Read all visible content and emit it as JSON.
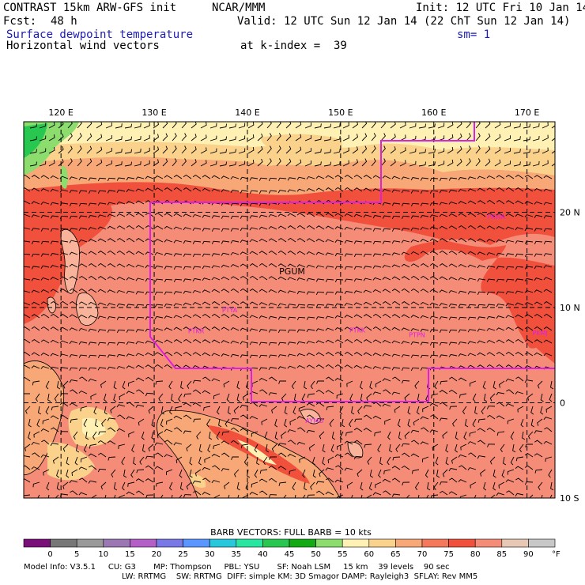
{
  "header": {
    "title": "CONTRAST 15km ARW-GFS init",
    "org": "NCAR/MMM",
    "init": "Init: 12 UTC Fri 10 Jan 14",
    "fcst_label": "Fcst:",
    "fcst_value": "48 h",
    "valid": "Valid: 12 UTC Sun 12 Jan 14 (22 ChT Sun 12 Jan 14)",
    "field": "Surface dewpoint temperature",
    "smoothing": "sm= 1",
    "vectors": "Horizontal wind vectors",
    "kindex": "at k-index =  39"
  },
  "axes": {
    "lon_labels": [
      "120 E",
      "130 E",
      "140 E",
      "150 E",
      "160 E",
      "170 E"
    ],
    "lon_values": [
      120,
      130,
      140,
      150,
      160,
      170
    ],
    "lat_labels": [
      "20 N",
      "10 N",
      "0",
      "10 S"
    ],
    "lat_values": [
      20,
      10,
      0,
      -10
    ],
    "lon_range": [
      116,
      173
    ],
    "lat_range": [
      -10,
      29.5
    ]
  },
  "stations": [
    {
      "name": "PGUM",
      "lon": 144.8,
      "lat": 13.5
    },
    {
      "name": "PTKR",
      "lon": 134.5,
      "lat": 7.3
    },
    {
      "name": "PTYA",
      "lon": 138.1,
      "lat": 9.5
    },
    {
      "name": "PTKK",
      "lon": 151.8,
      "lat": 7.4
    },
    {
      "name": "PTPN",
      "lon": 158.2,
      "lat": 6.9
    },
    {
      "name": "PKMJ",
      "lon": 171.4,
      "lat": 7.1
    },
    {
      "name": "PKWA",
      "lon": 166.7,
      "lat": 19.3
    },
    {
      "name": "AYMO",
      "lon": 147.2,
      "lat": -2.1
    }
  ],
  "legend": {
    "barb_caption": "BARB VECTORS:  FULL BARB = 10 kts",
    "unit": "°F",
    "ticks": [
      "0",
      "5",
      "10",
      "15",
      "20",
      "25",
      "30",
      "35",
      "40",
      "45",
      "50",
      "55",
      "60",
      "65",
      "70",
      "75",
      "80",
      "85",
      "90"
    ],
    "colors": [
      "#7a0f7a",
      "#777777",
      "#999999",
      "#9b78b4",
      "#b45fc8",
      "#7878e6",
      "#5a96ff",
      "#28c8dc",
      "#28e6a0",
      "#28c850",
      "#14aa14",
      "#8cdc6e",
      "#fff0b4",
      "#fad28c",
      "#f7a876",
      "#f5785a",
      "#f0503c",
      "#f58c78",
      "#e6c8b4",
      "#c8c8c8"
    ]
  },
  "footer": {
    "line1": "Model Info: V3.5.1     CU: G3       MP: Thompson     PBL: YSU       SF: Noah LSM     15 km    39 levels    90 sec",
    "line2": "LW: RRTMG    SW: RRTMG  DIFF: simple KM: 3D Smagor DAMP: Rayleigh3  SFLAY: Rev MM5"
  }
}
